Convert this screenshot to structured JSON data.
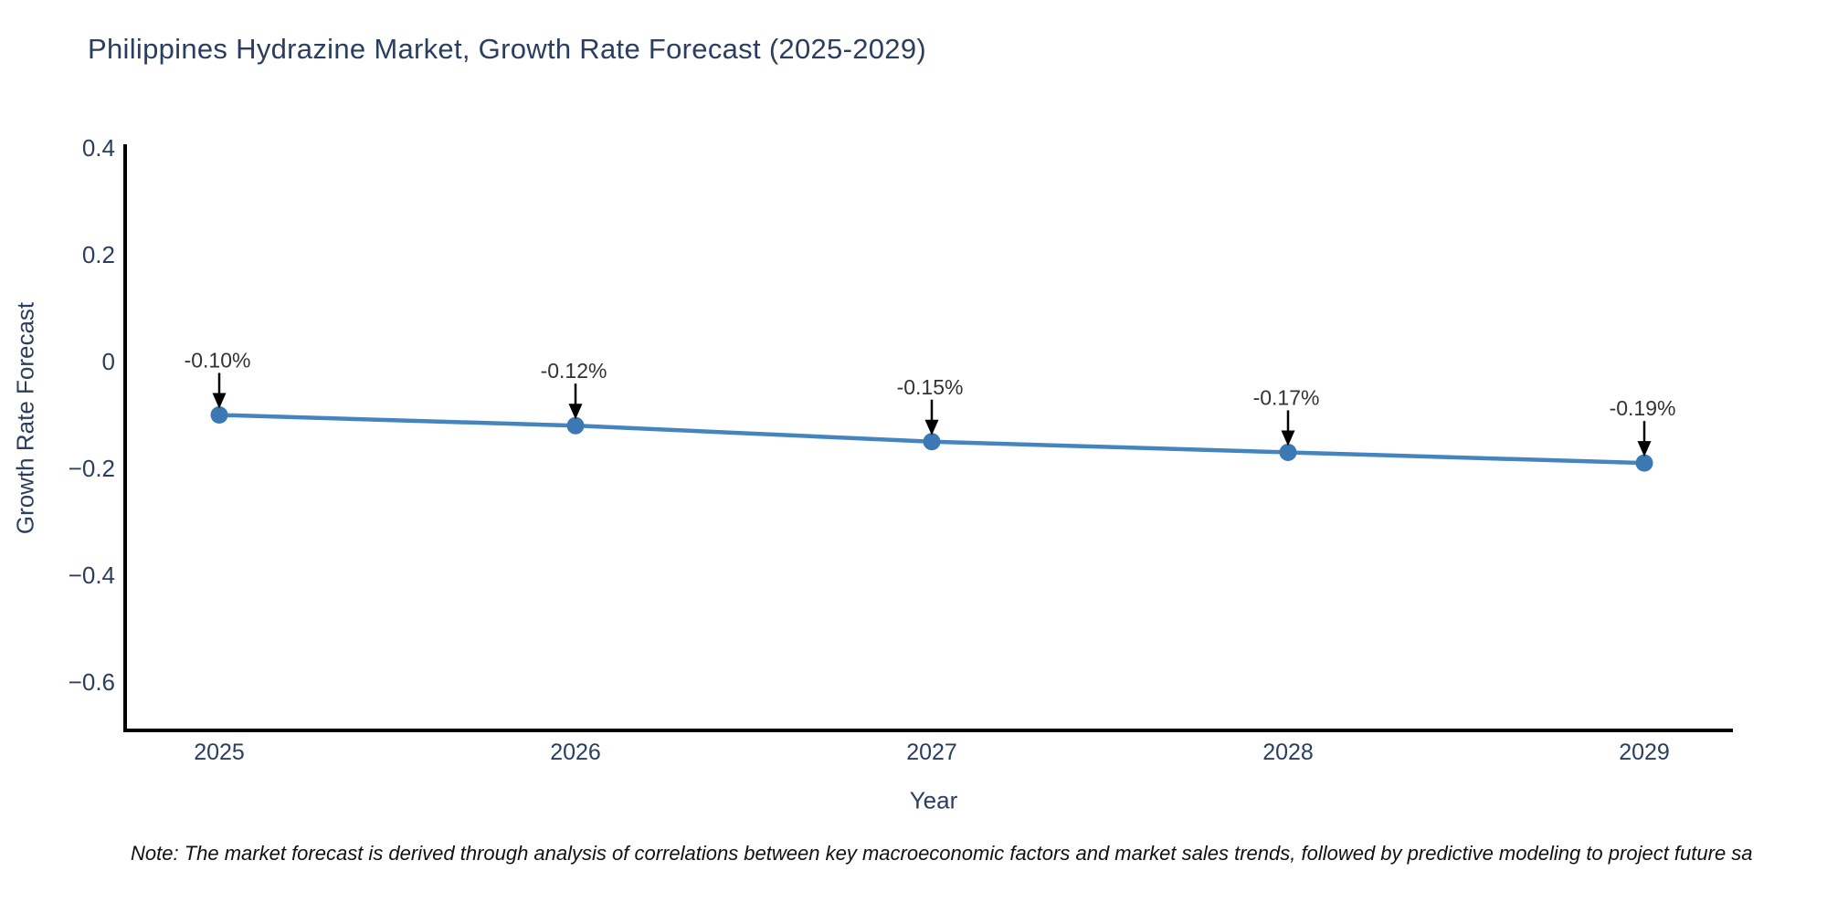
{
  "title": "Philippines Hydrazine Market, Growth Rate Forecast (2025-2029)",
  "note": "Note: The market forecast is derived through analysis of correlations between key macroeconomic factors and market sales trends, followed by predictive modeling to project future sa",
  "colors": {
    "background": "#ffffff",
    "title": "#2a3f5f",
    "axis_title": "#2a3f5f",
    "tick_label": "#2a3f5f",
    "axis_line": "#000000",
    "line": "#4484bf",
    "marker": "#3c78b4",
    "annotation_text": "#333333",
    "annotation_arrow": "#000000",
    "note_text": "#111111"
  },
  "chart_data": {
    "type": "line",
    "title": "Philippines Hydrazine Market, Growth Rate Forecast (2025-2029)",
    "xlabel": "Year",
    "ylabel": "Growth Rate Forecast",
    "x": [
      2025,
      2026,
      2027,
      2028,
      2029
    ],
    "x_tick_labels": [
      "2025",
      "2026",
      "2027",
      "2028",
      "2029"
    ],
    "series": [
      {
        "name": "Growth Rate Forecast",
        "values": [
          -0.1,
          -0.12,
          -0.15,
          -0.17,
          -0.19
        ],
        "point_labels": [
          "-0.10%",
          "-0.12%",
          "-0.15%",
          "-0.17%",
          "-0.19%"
        ]
      }
    ],
    "y_tick_values": [
      0.4,
      0.2,
      0,
      -0.2,
      -0.4,
      -0.6
    ],
    "y_tick_labels": [
      "0.4",
      "0.2",
      "0",
      "−0.2",
      "−0.4",
      "−0.6"
    ],
    "ylim": [
      -0.69,
      0.4
    ],
    "grid": false,
    "legend_position": "none",
    "annotation_arrow_direction": "down"
  }
}
